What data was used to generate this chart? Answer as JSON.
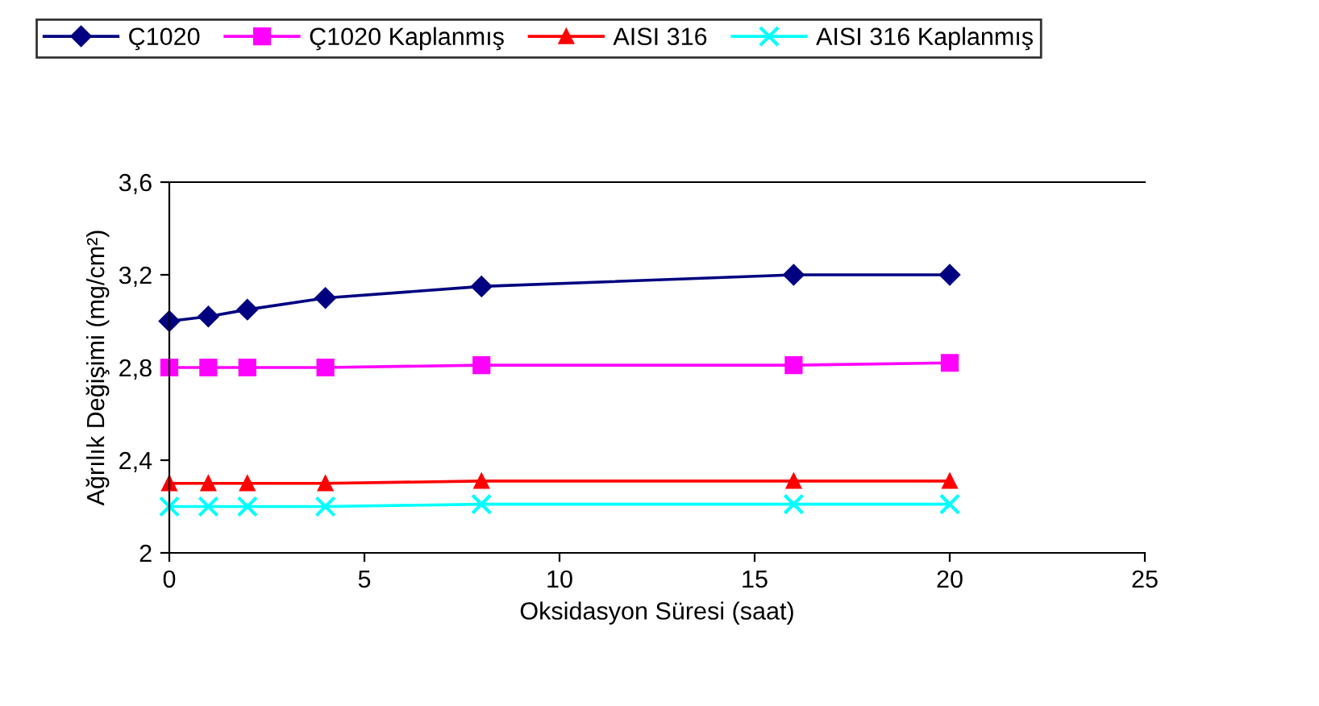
{
  "chart_data": {
    "type": "line",
    "x": [
      0,
      1,
      2,
      4,
      8,
      16,
      20
    ],
    "series": [
      {
        "name": "Ç1020",
        "color": "#000080",
        "marker": "diamond",
        "values": [
          3.0,
          3.02,
          3.05,
          3.1,
          3.15,
          3.2,
          3.2
        ]
      },
      {
        "name": "Ç1020 Kaplanmış",
        "color": "#ff00ff",
        "marker": "square",
        "values": [
          2.8,
          2.8,
          2.8,
          2.8,
          2.81,
          2.81,
          2.82
        ]
      },
      {
        "name": "AISI 316",
        "color": "#ff0000",
        "marker": "triangle",
        "values": [
          2.3,
          2.3,
          2.3,
          2.3,
          2.31,
          2.31,
          2.31
        ]
      },
      {
        "name": "AISI 316 Kaplanmış",
        "color": "#00ffff",
        "marker": "cross",
        "values": [
          2.2,
          2.2,
          2.2,
          2.2,
          2.21,
          2.21,
          2.21
        ]
      }
    ],
    "xlabel": "Oksidasyon Süresi (saat)",
    "ylabel": "Ağrılık Değişimi (mg/cm²)",
    "xlim": [
      0,
      25
    ],
    "xticks": [
      0,
      5,
      10,
      15,
      20,
      25
    ],
    "ylim": [
      2,
      3.6
    ],
    "yticks": [
      {
        "value": 2,
        "label": "2"
      },
      {
        "value": 2.4,
        "label": "2,4"
      },
      {
        "value": 2.8,
        "label": "2,8"
      },
      {
        "value": 3.2,
        "label": "3,2"
      },
      {
        "value": 3.6,
        "label": "3,6"
      }
    ],
    "grid": false,
    "legend": "top",
    "line_style": "solid"
  }
}
